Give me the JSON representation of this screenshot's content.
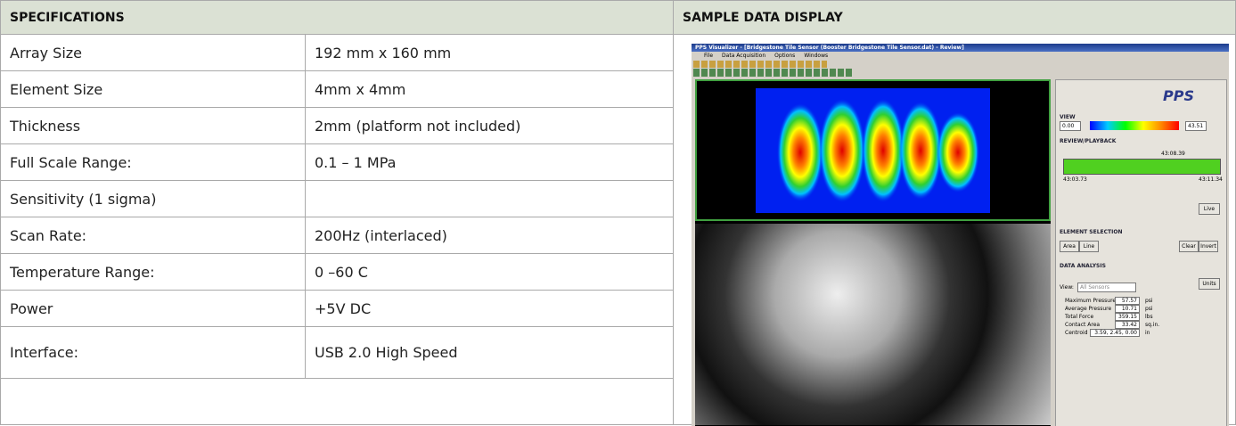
{
  "left": {
    "header": "SPECIFICATIONS",
    "rows": [
      {
        "label": "Array Size",
        "value": "192 mm x 160 mm"
      },
      {
        "label": "Element Size",
        "value": "4mm x 4mm"
      },
      {
        "label": "Thickness",
        "value": "2mm (platform not included)"
      },
      {
        "label": "Full Scale Range:",
        "value": "0.1 – 1 MPa"
      },
      {
        "label": "Sensitivity (1 sigma)"
      },
      {
        "label": "Scan Rate:",
        "value": "200Hz (interlaced)"
      },
      {
        "label": "Temperature Range:",
        "value": "0 –60   C"
      },
      {
        "label": "Power",
        "value": "+5V DC"
      },
      {
        "label": "Interface:",
        "value": "USB 2.0 High Speed"
      }
    ]
  },
  "right": {
    "header": "SAMPLE DATA DISPLAY",
    "screenshot": {
      "window_title": "PPS Visualizer - [Bridgestone Tile Sensor (Booster Bridgestone Tile Sensor.dat) - Review]",
      "menu": [
        "File",
        "Data Acquisition",
        "Options",
        "Windows"
      ],
      "logo": "PPS",
      "view_label": "VIEW",
      "view_min": "0.00",
      "view_max": "43.51",
      "review_label": "REVIEW/PLAYBACK",
      "time_current": "43:08.39",
      "time_start": "43:03.73",
      "time_end": "43:11.34",
      "live_button": "Live",
      "element_label": "ELEMENT SELECTION",
      "element_buttons": [
        "Area",
        "Line",
        "Clear",
        "Invert"
      ],
      "analysis_label": "DATA ANALYSIS",
      "view_field_label": "View:",
      "view_field_value": "All Sensors",
      "units_button": "Units",
      "metrics": [
        {
          "label": "Maximum Pressure",
          "value": "57.57",
          "unit": "psi"
        },
        {
          "label": "Average Pressure",
          "value": "10.71",
          "unit": "psi"
        },
        {
          "label": "Total Force",
          "value": "359.15",
          "unit": "lbs"
        },
        {
          "label": "Contact Area",
          "value": "33.42",
          "unit": "sq.in."
        },
        {
          "label": "Centroid",
          "value": "3.59, 2.45, 0.00",
          "unit": "in"
        }
      ]
    }
  }
}
